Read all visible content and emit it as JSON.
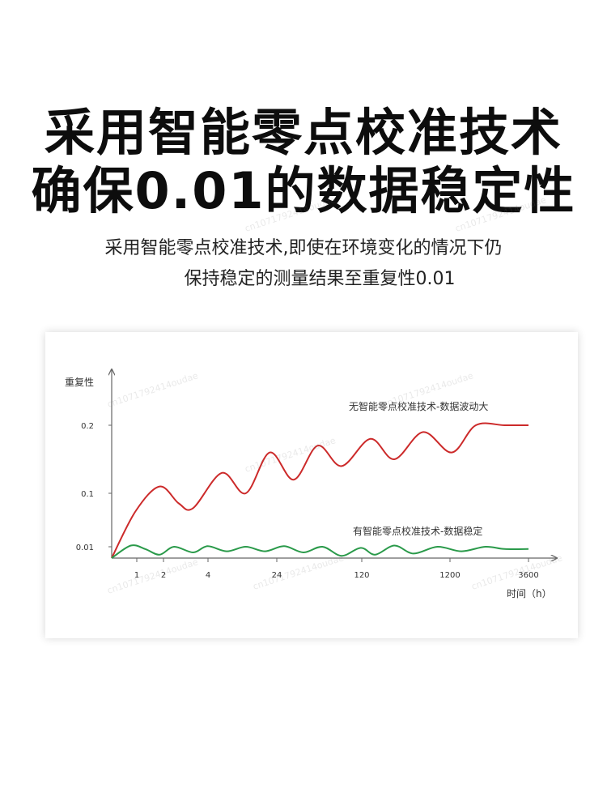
{
  "header": {
    "line1": "采用智能零点校准技术",
    "line2": "确保0.01的数据稳定性"
  },
  "subtitle": {
    "line1": "采用智能零点校准技术,即使在环境变化的情况下仍",
    "line2": "保持稳定的测量结果至重复性0.01"
  },
  "watermark": "cn1071792414oudae",
  "colors": {
    "red_series": "#cc2a2a",
    "green_series": "#2a9a4a",
    "axis": "#666666"
  },
  "chart_data": {
    "type": "line",
    "ylabel": "重复性",
    "xlabel": "时间（h）",
    "x_ticks": [
      "1",
      "2",
      "4",
      "24",
      "120",
      "1200",
      "3600"
    ],
    "y_ticks": [
      "0.01",
      "0.1",
      "0.2"
    ],
    "series": [
      {
        "name": "无智能零点校准技术-数据波动大",
        "color": "#cc2a2a",
        "points": [
          [
            0,
            0.0
          ],
          [
            0.5,
            0.07
          ],
          [
            1.0,
            0.11
          ],
          [
            1.4,
            0.083
          ],
          [
            1.7,
            0.075
          ],
          [
            2.3,
            0.13
          ],
          [
            2.8,
            0.1
          ],
          [
            3.3,
            0.16
          ],
          [
            3.8,
            0.12
          ],
          [
            4.3,
            0.17
          ],
          [
            4.8,
            0.14
          ],
          [
            5.4,
            0.18
          ],
          [
            5.9,
            0.15
          ],
          [
            6.5,
            0.19
          ],
          [
            7.1,
            0.16
          ],
          [
            7.6,
            0.2
          ],
          [
            8.2,
            0.2
          ],
          [
            8.7,
            0.2
          ]
        ]
      },
      {
        "name": "有智能零点校准技术-数据稳定",
        "color": "#2a9a4a",
        "points": [
          [
            0,
            0.0
          ],
          [
            0.4,
            0.012
          ],
          [
            0.7,
            0.008
          ],
          [
            1.0,
            0.003
          ],
          [
            1.3,
            0.01
          ],
          [
            1.7,
            0.005
          ],
          [
            2.0,
            0.011
          ],
          [
            2.4,
            0.006
          ],
          [
            2.8,
            0.01
          ],
          [
            3.2,
            0.006
          ],
          [
            3.6,
            0.011
          ],
          [
            4.0,
            0.005
          ],
          [
            4.4,
            0.01
          ],
          [
            4.8,
            0.002
          ],
          [
            5.2,
            0.009
          ],
          [
            5.5,
            0.003
          ],
          [
            5.9,
            0.012
          ],
          [
            6.3,
            0.004
          ],
          [
            6.8,
            0.01
          ],
          [
            7.3,
            0.006
          ],
          [
            7.8,
            0.01
          ],
          [
            8.2,
            0.008
          ],
          [
            8.7,
            0.008
          ]
        ]
      }
    ]
  }
}
